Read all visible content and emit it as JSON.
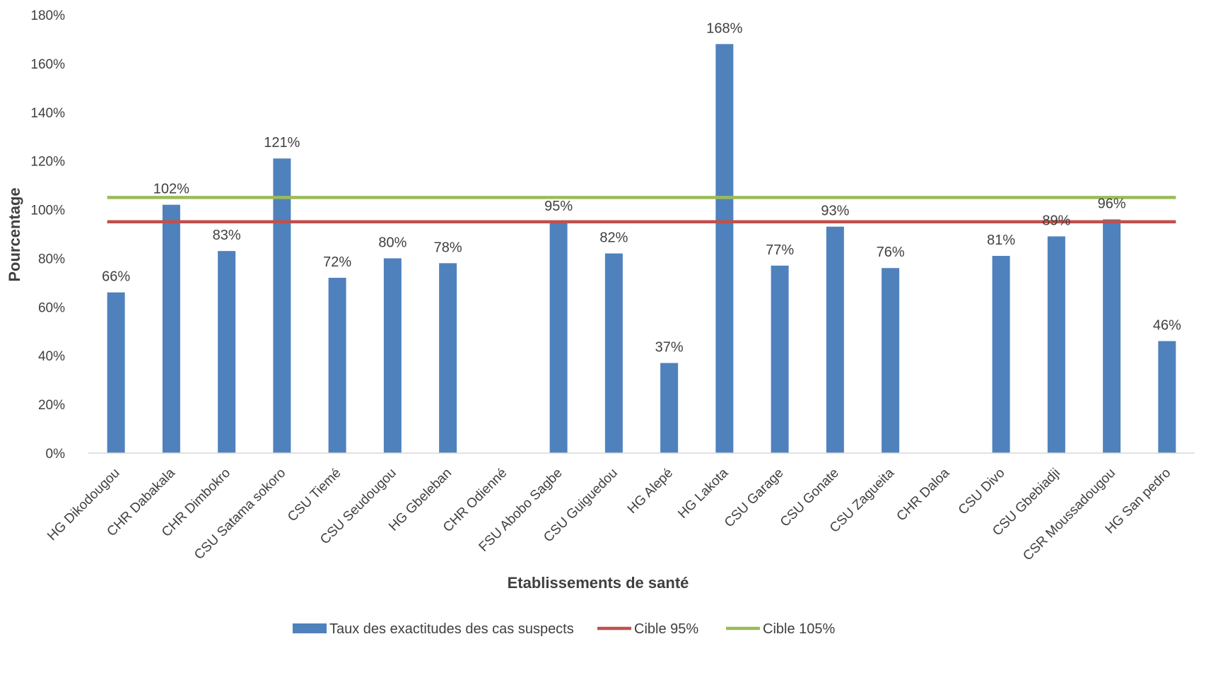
{
  "chart_data": {
    "type": "bar",
    "title": "",
    "xlabel": "Etablissements de santé",
    "ylabel": "Pourcentage",
    "ylim": [
      0,
      180
    ],
    "yticks": [
      0,
      20,
      40,
      60,
      80,
      100,
      120,
      140,
      160,
      180
    ],
    "ytick_suffix": "%",
    "grid": false,
    "legend_position": "bottom",
    "categories": [
      "HG Dikodougou",
      "CHR Dabakala",
      "CHR Dimbokro",
      "CSU Satama sokoro",
      "CSU Tiemé",
      "CSU Seudougou",
      "HG Gbeleban",
      "CHR Odienné",
      "FSU  Abobo Sagbe",
      "CSU Guiguedou",
      "HG Alepé",
      "HG Lakota",
      "CSU Garage",
      "CSU Gonate",
      "CSU Zagueita",
      "CHR Daloa",
      "CSU Divo",
      "CSU Gbebiadji",
      "CSR Moussadougou",
      "HG San pedro"
    ],
    "series": [
      {
        "name": "Taux des exactitudes des cas suspects",
        "kind": "bar",
        "color": "#4F81BD",
        "values": [
          66,
          102,
          83,
          121,
          72,
          80,
          78,
          null,
          95,
          82,
          37,
          168,
          77,
          93,
          76,
          null,
          81,
          89,
          96,
          46
        ],
        "labels": [
          "66%",
          "102%",
          "83%",
          "121%",
          "72%",
          "80%",
          "78%",
          "",
          "95%",
          "82%",
          "37%",
          "168%",
          "77%",
          "93%",
          "76%",
          "",
          "81%",
          "89%",
          "96%",
          "46%"
        ]
      },
      {
        "name": "Cible 95%",
        "kind": "line",
        "color": "#C0504D",
        "value": 95
      },
      {
        "name": "Cible 105%",
        "kind": "line",
        "color": "#9BBB59",
        "value": 105
      }
    ]
  }
}
